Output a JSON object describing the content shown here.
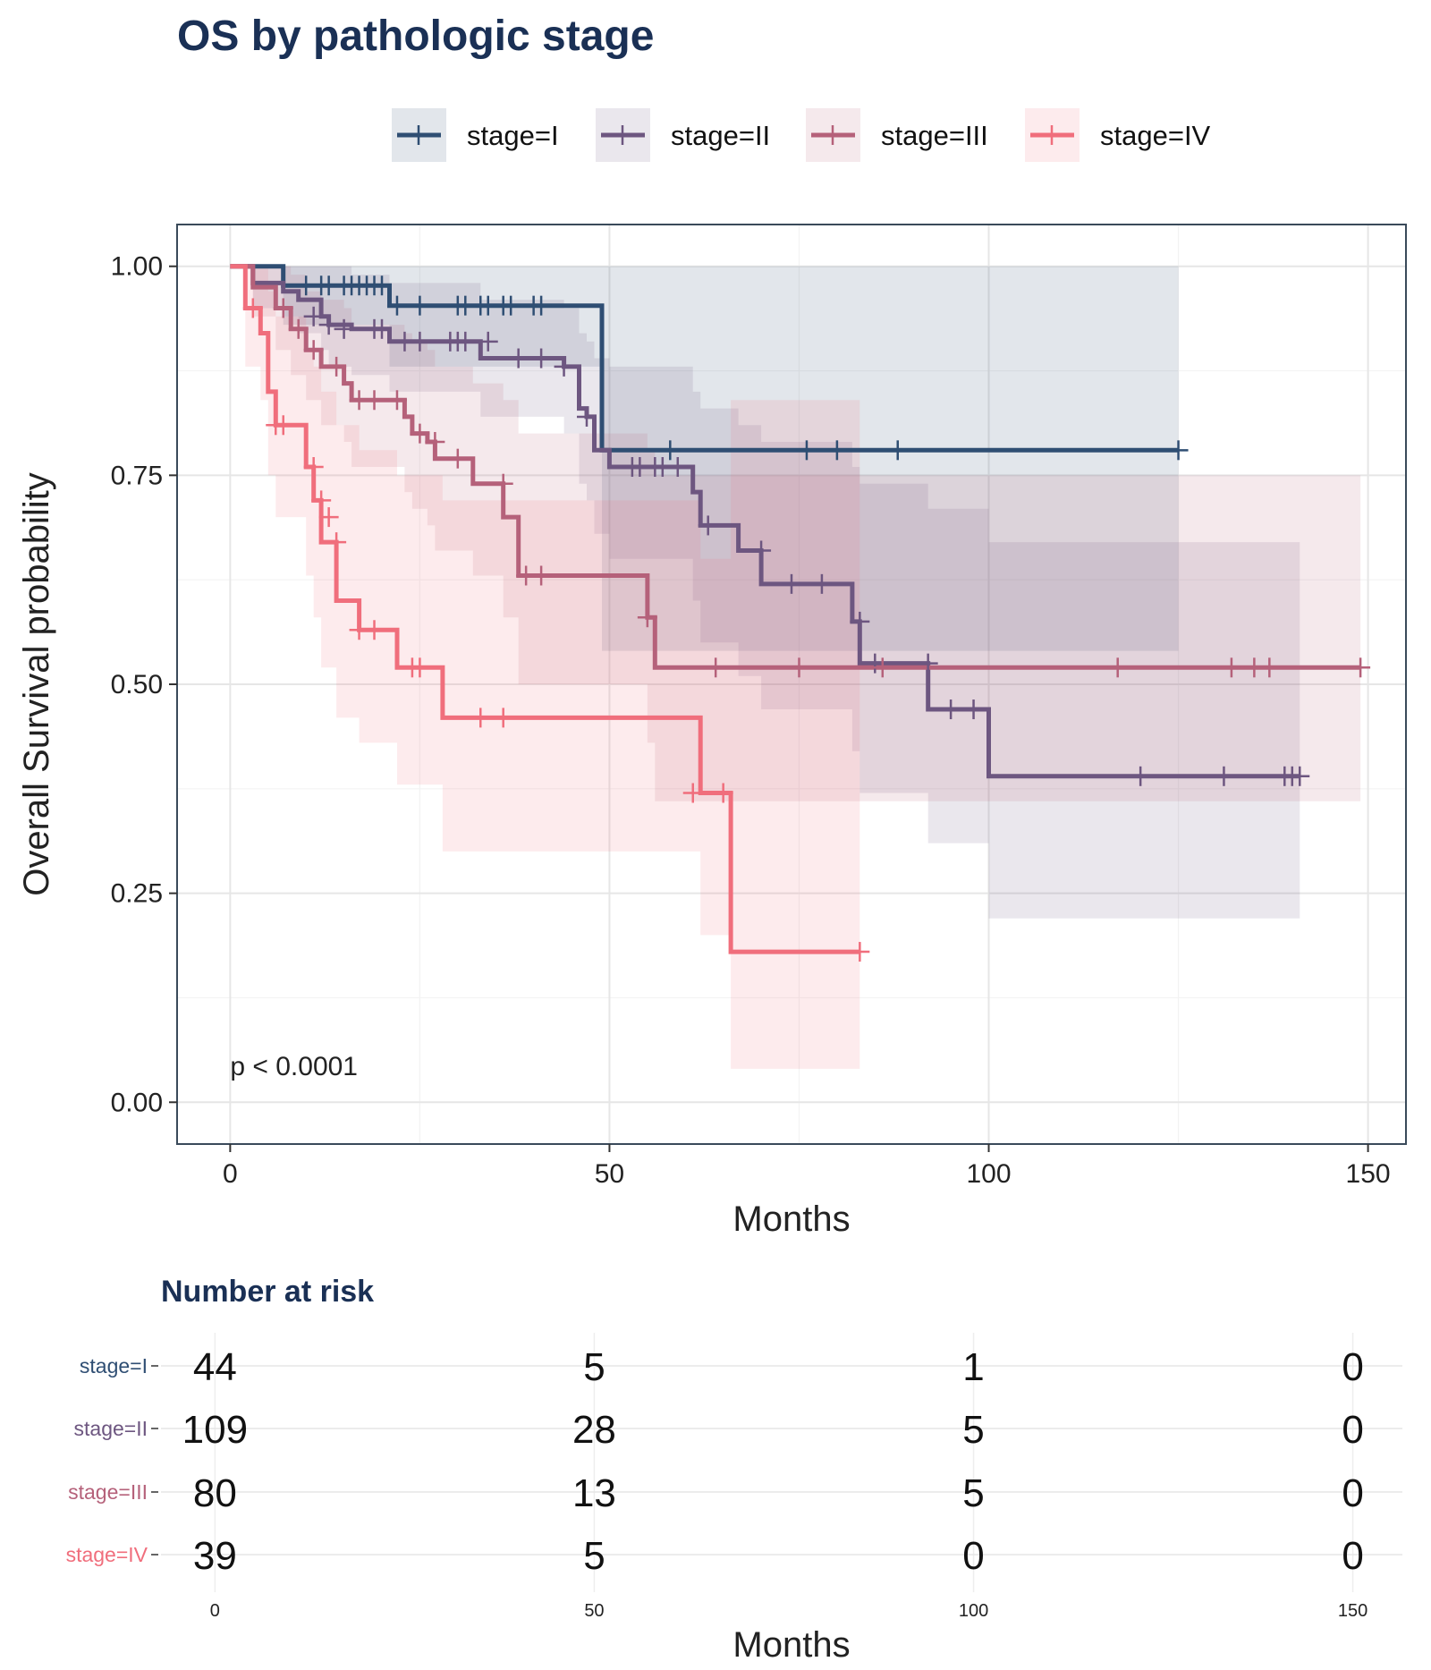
{
  "chart_data": {
    "type": "line",
    "title": "OS by pathologic stage",
    "xlabel": "Months",
    "ylabel": "Overall Survival probability",
    "xlim": [
      -7,
      155
    ],
    "ylim": [
      -0.05,
      1.05
    ],
    "x_ticks": [
      "0",
      "50",
      "100",
      "150"
    ],
    "y_ticks": [
      "0.00",
      "0.25",
      "0.50",
      "0.75",
      "1.00"
    ],
    "grid": true,
    "legend_position": "top",
    "annotation": "p < 0.0001",
    "series": [
      {
        "name": "stage=I",
        "color": "#2f4e73",
        "steps": [
          [
            0,
            1.0
          ],
          [
            7,
            0.977
          ],
          [
            21,
            0.953
          ],
          [
            49,
            0.78
          ],
          [
            125,
            0.78
          ]
        ],
        "ci": [
          [
            0,
            1.0,
            1.0
          ],
          [
            7,
            0.93,
            1.0
          ],
          [
            21,
            0.88,
            1.0
          ],
          [
            49,
            0.54,
            1.0
          ],
          [
            125,
            0.54,
            1.0
          ]
        ],
        "censors": [
          [
            10,
            0.977
          ],
          [
            12,
            0.977
          ],
          [
            13,
            0.977
          ],
          [
            15,
            0.977
          ],
          [
            16,
            0.977
          ],
          [
            17,
            0.977
          ],
          [
            18,
            0.977
          ],
          [
            19,
            0.977
          ],
          [
            20,
            0.977
          ],
          [
            22,
            0.953
          ],
          [
            25,
            0.953
          ],
          [
            30,
            0.953
          ],
          [
            31,
            0.953
          ],
          [
            33,
            0.953
          ],
          [
            34,
            0.953
          ],
          [
            36,
            0.953
          ],
          [
            37,
            0.953
          ],
          [
            40,
            0.953
          ],
          [
            41,
            0.953
          ],
          [
            58,
            0.78
          ],
          [
            76,
            0.78
          ],
          [
            80,
            0.78
          ],
          [
            88,
            0.78
          ],
          [
            125,
            0.78
          ]
        ]
      },
      {
        "name": "stage=II",
        "color": "#6d5680",
        "steps": [
          [
            0,
            1.0
          ],
          [
            3,
            0.98
          ],
          [
            7,
            0.97
          ],
          [
            9,
            0.96
          ],
          [
            12,
            0.94
          ],
          [
            13,
            0.93
          ],
          [
            16,
            0.925
          ],
          [
            21,
            0.91
          ],
          [
            33,
            0.89
          ],
          [
            44,
            0.88
          ],
          [
            46,
            0.83
          ],
          [
            47,
            0.82
          ],
          [
            48,
            0.78
          ],
          [
            50,
            0.76
          ],
          [
            61,
            0.73
          ],
          [
            62,
            0.69
          ],
          [
            67,
            0.66
          ],
          [
            70,
            0.62
          ],
          [
            82,
            0.575
          ],
          [
            83,
            0.525
          ],
          [
            92,
            0.47
          ],
          [
            100,
            0.39
          ],
          [
            141,
            0.39
          ]
        ],
        "ci": [
          [
            0,
            1.0,
            1.0
          ],
          [
            3,
            0.95,
            1.0
          ],
          [
            7,
            0.94,
            1.0
          ],
          [
            9,
            0.92,
            1.0
          ],
          [
            12,
            0.9,
            1.0
          ],
          [
            13,
            0.88,
            1.0
          ],
          [
            16,
            0.87,
            0.99
          ],
          [
            21,
            0.85,
            0.98
          ],
          [
            33,
            0.82,
            0.96
          ],
          [
            44,
            0.8,
            0.95
          ],
          [
            46,
            0.74,
            0.92
          ],
          [
            47,
            0.72,
            0.91
          ],
          [
            48,
            0.68,
            0.89
          ],
          [
            50,
            0.65,
            0.88
          ],
          [
            61,
            0.6,
            0.85
          ],
          [
            62,
            0.55,
            0.83
          ],
          [
            67,
            0.51,
            0.81
          ],
          [
            70,
            0.47,
            0.79
          ],
          [
            82,
            0.42,
            0.76
          ],
          [
            83,
            0.37,
            0.74
          ],
          [
            92,
            0.31,
            0.71
          ],
          [
            100,
            0.22,
            0.67
          ],
          [
            141,
            0.22,
            0.67
          ]
        ],
        "censors": [
          [
            11,
            0.94
          ],
          [
            13,
            0.93
          ],
          [
            15,
            0.925
          ],
          [
            19,
            0.925
          ],
          [
            20,
            0.925
          ],
          [
            23,
            0.91
          ],
          [
            25,
            0.91
          ],
          [
            29,
            0.91
          ],
          [
            30,
            0.91
          ],
          [
            31,
            0.91
          ],
          [
            34,
            0.91
          ],
          [
            38,
            0.89
          ],
          [
            41,
            0.89
          ],
          [
            44,
            0.88
          ],
          [
            47,
            0.82
          ],
          [
            53,
            0.76
          ],
          [
            54,
            0.76
          ],
          [
            56,
            0.76
          ],
          [
            57,
            0.76
          ],
          [
            59,
            0.76
          ],
          [
            63,
            0.69
          ],
          [
            70,
            0.66
          ],
          [
            74,
            0.62
          ],
          [
            78,
            0.62
          ],
          [
            83,
            0.575
          ],
          [
            85,
            0.525
          ],
          [
            92,
            0.525
          ],
          [
            95,
            0.47
          ],
          [
            98,
            0.47
          ],
          [
            120,
            0.39
          ],
          [
            131,
            0.39
          ],
          [
            139,
            0.39
          ],
          [
            140,
            0.39
          ],
          [
            141,
            0.39
          ]
        ]
      },
      {
        "name": "stage=III",
        "color": "#b5617a",
        "steps": [
          [
            0,
            1.0
          ],
          [
            3,
            0.975
          ],
          [
            6,
            0.95
          ],
          [
            8,
            0.925
          ],
          [
            10,
            0.9
          ],
          [
            12,
            0.88
          ],
          [
            15,
            0.86
          ],
          [
            16,
            0.84
          ],
          [
            23,
            0.82
          ],
          [
            24,
            0.8
          ],
          [
            26,
            0.79
          ],
          [
            27,
            0.77
          ],
          [
            32,
            0.74
          ],
          [
            36,
            0.7
          ],
          [
            38,
            0.63
          ],
          [
            55,
            0.58
          ],
          [
            56,
            0.52
          ],
          [
            149,
            0.52
          ]
        ],
        "ci": [
          [
            0,
            1.0,
            1.0
          ],
          [
            3,
            0.94,
            1.0
          ],
          [
            6,
            0.9,
            1.0
          ],
          [
            8,
            0.87,
            0.99
          ],
          [
            10,
            0.84,
            0.97
          ],
          [
            12,
            0.81,
            0.96
          ],
          [
            15,
            0.79,
            0.95
          ],
          [
            16,
            0.76,
            0.93
          ],
          [
            23,
            0.73,
            0.92
          ],
          [
            24,
            0.71,
            0.91
          ],
          [
            26,
            0.69,
            0.9
          ],
          [
            27,
            0.66,
            0.88
          ],
          [
            32,
            0.63,
            0.86
          ],
          [
            36,
            0.58,
            0.84
          ],
          [
            38,
            0.5,
            0.8
          ],
          [
            55,
            0.43,
            0.78
          ],
          [
            56,
            0.36,
            0.75
          ],
          [
            149,
            0.36,
            0.75
          ]
        ],
        "censors": [
          [
            7,
            0.95
          ],
          [
            9,
            0.925
          ],
          [
            11,
            0.9
          ],
          [
            14,
            0.88
          ],
          [
            17,
            0.84
          ],
          [
            19,
            0.84
          ],
          [
            22,
            0.84
          ],
          [
            25,
            0.8
          ],
          [
            27,
            0.79
          ],
          [
            30,
            0.77
          ],
          [
            36,
            0.74
          ],
          [
            39,
            0.63
          ],
          [
            41,
            0.63
          ],
          [
            55,
            0.58
          ],
          [
            64,
            0.52
          ],
          [
            75,
            0.52
          ],
          [
            86,
            0.52
          ],
          [
            117,
            0.52
          ],
          [
            132,
            0.52
          ],
          [
            135,
            0.52
          ],
          [
            137,
            0.52
          ],
          [
            149,
            0.52
          ]
        ]
      },
      {
        "name": "stage=IV",
        "color": "#f06e7c",
        "steps": [
          [
            0,
            1.0
          ],
          [
            2,
            0.95
          ],
          [
            4,
            0.92
          ],
          [
            5,
            0.85
          ],
          [
            6,
            0.81
          ],
          [
            10,
            0.76
          ],
          [
            11,
            0.72
          ],
          [
            12,
            0.67
          ],
          [
            14,
            0.6
          ],
          [
            17,
            0.565
          ],
          [
            22,
            0.52
          ],
          [
            28,
            0.46
          ],
          [
            62,
            0.37
          ],
          [
            66,
            0.18
          ],
          [
            83,
            0.18
          ]
        ],
        "ci": [
          [
            0,
            1.0,
            1.0
          ],
          [
            2,
            0.88,
            1.0
          ],
          [
            4,
            0.84,
            1.0
          ],
          [
            5,
            0.75,
            0.97
          ],
          [
            6,
            0.7,
            0.94
          ],
          [
            10,
            0.63,
            0.9
          ],
          [
            11,
            0.58,
            0.88
          ],
          [
            12,
            0.52,
            0.85
          ],
          [
            14,
            0.46,
            0.81
          ],
          [
            17,
            0.43,
            0.78
          ],
          [
            22,
            0.38,
            0.75
          ],
          [
            28,
            0.3,
            0.72
          ],
          [
            62,
            0.2,
            0.65
          ],
          [
            66,
            0.04,
            0.84
          ],
          [
            83,
            0.04,
            0.84
          ]
        ],
        "censors": [
          [
            3,
            0.95
          ],
          [
            6,
            0.81
          ],
          [
            7,
            0.81
          ],
          [
            11,
            0.76
          ],
          [
            12,
            0.72
          ],
          [
            13,
            0.7
          ],
          [
            14,
            0.67
          ],
          [
            17,
            0.565
          ],
          [
            19,
            0.565
          ],
          [
            24,
            0.52
          ],
          [
            25,
            0.52
          ],
          [
            33,
            0.46
          ],
          [
            36,
            0.46
          ],
          [
            61,
            0.37
          ],
          [
            65,
            0.37
          ],
          [
            83,
            0.18
          ]
        ]
      }
    ],
    "risk_table": {
      "title": "Number at risk",
      "xlabel": "Months",
      "x_ticks": [
        "0",
        "50",
        "100",
        "150"
      ],
      "rows": [
        {
          "label": "stage=I",
          "color": "#2f4e73",
          "values": [
            "44",
            "5",
            "1",
            "0"
          ]
        },
        {
          "label": "stage=II",
          "color": "#6d5680",
          "values": [
            "109",
            "28",
            "5",
            "0"
          ]
        },
        {
          "label": "stage=III",
          "color": "#b5617a",
          "values": [
            "80",
            "13",
            "5",
            "0"
          ]
        },
        {
          "label": "stage=IV",
          "color": "#f06e7c",
          "values": [
            "39",
            "5",
            "0",
            "0"
          ]
        }
      ]
    }
  }
}
